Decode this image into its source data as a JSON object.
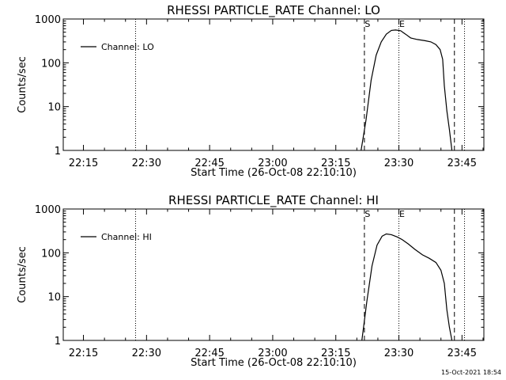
{
  "page": {
    "timestamp": "15-Oct-2021 18:54"
  },
  "chart_data": [
    {
      "type": "line",
      "title": "RHESSI PARTICLE_RATE Channel: LO",
      "xlabel": "Start Time (26-Oct-08 22:10:10)",
      "ylabel": "Counts/sec",
      "x_unit": "minutes after 22:10:10",
      "xlim": [
        0,
        100
      ],
      "ylim": [
        1,
        1000
      ],
      "yscale": "log",
      "xticks": [
        {
          "value": 4.8,
          "label": "22:15"
        },
        {
          "value": 19.8,
          "label": "22:30"
        },
        {
          "value": 34.8,
          "label": "22:45"
        },
        {
          "value": 49.8,
          "label": "23:00"
        },
        {
          "value": 64.8,
          "label": "23:15"
        },
        {
          "value": 79.8,
          "label": "23:30"
        },
        {
          "value": 94.8,
          "label": "23:45"
        }
      ],
      "yticks": [
        {
          "value": 1,
          "label": "1"
        },
        {
          "value": 10,
          "label": "10"
        },
        {
          "value": 100,
          "label": "100"
        },
        {
          "value": 1000,
          "label": "1000"
        }
      ],
      "legend": {
        "position": "top-left",
        "entries": [
          "Channel: LO"
        ]
      },
      "markers": [
        {
          "x": 17.2,
          "style": "dotted",
          "label": ""
        },
        {
          "x": 71.6,
          "style": "dashed",
          "label": "S"
        },
        {
          "x": 79.8,
          "style": "dotted",
          "label": "E"
        },
        {
          "x": 93.0,
          "style": "dashed",
          "label": ""
        },
        {
          "x": 95.4,
          "style": "dotted",
          "label": ""
        }
      ],
      "series": [
        {
          "name": "Channel: LO",
          "x": [
            70.8,
            72.0,
            73.2,
            74.4,
            75.6,
            76.8,
            78.0,
            79.0,
            80.2,
            81.4,
            82.6,
            84.2,
            86.0,
            87.4,
            88.6,
            89.6,
            90.2,
            90.6,
            91.2,
            91.8,
            92.4
          ],
          "y": [
            1.0,
            5.0,
            40,
            150,
            300,
            450,
            550,
            560,
            540,
            450,
            370,
            340,
            320,
            300,
            260,
            200,
            120,
            30,
            8,
            3,
            1.0
          ]
        }
      ]
    },
    {
      "type": "line",
      "title": "RHESSI PARTICLE_RATE Channel: HI",
      "xlabel": "Start Time (26-Oct-08 22:10:10)",
      "ylabel": "Counts/sec",
      "x_unit": "minutes after 22:10:10",
      "xlim": [
        0,
        100
      ],
      "ylim": [
        1,
        1000
      ],
      "yscale": "log",
      "xticks": [
        {
          "value": 4.8,
          "label": "22:15"
        },
        {
          "value": 19.8,
          "label": "22:30"
        },
        {
          "value": 34.8,
          "label": "22:45"
        },
        {
          "value": 49.8,
          "label": "23:00"
        },
        {
          "value": 64.8,
          "label": "23:15"
        },
        {
          "value": 79.8,
          "label": "23:30"
        },
        {
          "value": 94.8,
          "label": "23:45"
        }
      ],
      "yticks": [
        {
          "value": 1,
          "label": "1"
        },
        {
          "value": 10,
          "label": "10"
        },
        {
          "value": 100,
          "label": "100"
        },
        {
          "value": 1000,
          "label": "1000"
        }
      ],
      "legend": {
        "position": "top-left",
        "entries": [
          "Channel: HI"
        ]
      },
      "markers": [
        {
          "x": 17.2,
          "style": "dotted",
          "label": ""
        },
        {
          "x": 71.6,
          "style": "dashed",
          "label": "S"
        },
        {
          "x": 79.8,
          "style": "dotted",
          "label": "E"
        },
        {
          "x": 93.0,
          "style": "dashed",
          "label": ""
        },
        {
          "x": 95.4,
          "style": "dotted",
          "label": ""
        }
      ],
      "series": [
        {
          "name": "Channel: HI",
          "x": [
            71.0,
            72.2,
            73.4,
            74.6,
            75.8,
            76.8,
            78.0,
            79.4,
            80.6,
            82.0,
            83.6,
            85.4,
            87.0,
            88.6,
            89.8,
            90.6,
            91.2,
            91.8,
            92.4
          ],
          "y": [
            1.0,
            8,
            50,
            150,
            240,
            270,
            260,
            230,
            200,
            160,
            120,
            90,
            75,
            60,
            40,
            20,
            5,
            2,
            1.0
          ]
        }
      ]
    }
  ]
}
